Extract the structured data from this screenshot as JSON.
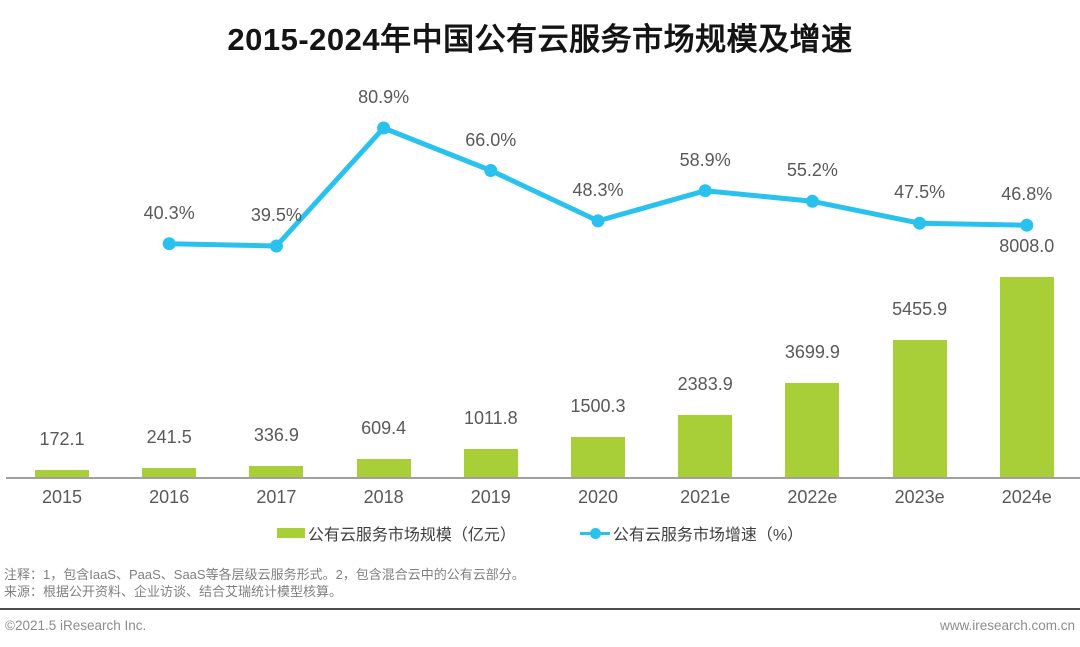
{
  "title": "2015-2024年中国公有云服务市场规模及增速",
  "chart_data": {
    "type": "bar+line",
    "title": "2015-2024年中国公有云服务市场规模及增速",
    "categories": [
      "2015",
      "2016",
      "2017",
      "2018",
      "2019",
      "2020",
      "2021e",
      "2022e",
      "2023e",
      "2024e"
    ],
    "series": [
      {
        "name": "公有云服务市场规模（亿元）",
        "type": "bar",
        "color": "#a8ce38",
        "values": [
          172.1,
          241.5,
          336.9,
          609.4,
          1011.8,
          1500.3,
          2383.9,
          3699.9,
          5455.9,
          8008.0
        ],
        "labels": [
          "172.1",
          "241.5",
          "336.9",
          "609.4",
          "1011.8",
          "1500.3",
          "2383.9",
          "3699.9",
          "5455.9",
          "8008.0"
        ]
      },
      {
        "name": "公有云服务市场增速（%）",
        "type": "line",
        "color": "#29c2ef",
        "values": [
          null,
          40.3,
          39.5,
          80.9,
          66.0,
          48.3,
          58.9,
          55.2,
          47.5,
          46.8
        ],
        "labels": [
          null,
          "40.3%",
          "39.5%",
          "80.9%",
          "66.0%",
          "48.3%",
          "58.9%",
          "55.2%",
          "47.5%",
          "46.8%"
        ]
      }
    ],
    "xlabel": "",
    "ylabel": "",
    "grid": false,
    "value_labels": true,
    "legend_position": "bottom",
    "bar_axis_range": [
      0,
      8500
    ],
    "line_axis_range_pct": [
      0,
      100
    ]
  },
  "colors": {
    "bar_green": "#a8ce38",
    "line_blue": "#29c2ef",
    "title_text": "#141414",
    "data_label_gray": "#595959",
    "axis_gray": "#a0a0a0",
    "note_gray": "#808080",
    "separator_dark": "#4d4d4d",
    "footer_gray": "#8c8c8c"
  },
  "notes": {
    "line1": "注释：1，包含IaaS、PaaS、SaaS等各层级云服务形式。2，包含混合云中的公有云部分。",
    "line2": "来源：根据公开资料、企业访谈、结合艾瑞统计模型核算。"
  },
  "footer": {
    "left": "©2021.5 iResearch Inc.",
    "right": "www.iresearch.com.cn"
  }
}
